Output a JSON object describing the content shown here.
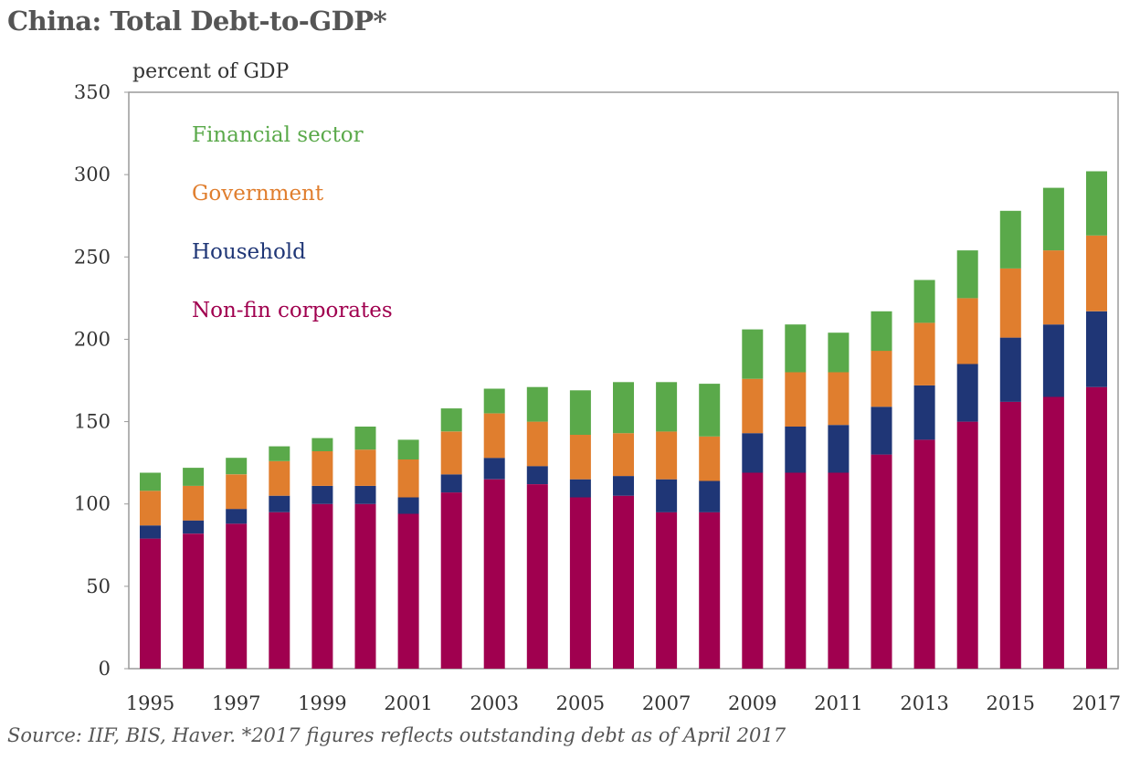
{
  "title": "China: Total Debt-to-GDP*",
  "source": "Source: IIF, BIS, Haver. *2017 figures reflects outstanding debt as of April 2017",
  "chart_data": {
    "type": "bar",
    "stacked": true,
    "ylabel": "percent of GDP",
    "ylim": [
      0,
      350
    ],
    "yticks": [
      0,
      50,
      100,
      150,
      200,
      250,
      300,
      350
    ],
    "grid": false,
    "legend_position": "top-left",
    "categories": [
      "1995",
      "1996",
      "1997",
      "1998",
      "1999",
      "2000",
      "2001",
      "2002",
      "2003",
      "2004",
      "2005",
      "2006",
      "2007",
      "2008",
      "2009",
      "2010",
      "2011",
      "2012",
      "2013",
      "2014",
      "2015",
      "2016",
      "2017"
    ],
    "xtick_labels": [
      "1995",
      "1997",
      "1999",
      "2001",
      "2003",
      "2005",
      "2007",
      "2009",
      "2011",
      "2013",
      "2015",
      "2017"
    ],
    "series": [
      {
        "name": "Non-fin corporates",
        "color": "#a0004f",
        "values": [
          79,
          82,
          88,
          95,
          100,
          100,
          94,
          107,
          115,
          112,
          104,
          105,
          95,
          95,
          119,
          119,
          119,
          130,
          139,
          150,
          162,
          165,
          171
        ]
      },
      {
        "name": "Household",
        "color": "#1f3676",
        "values": [
          8,
          8,
          9,
          10,
          11,
          11,
          10,
          11,
          13,
          11,
          11,
          12,
          20,
          19,
          24,
          28,
          29,
          29,
          33,
          35,
          39,
          44,
          46
        ]
      },
      {
        "name": "Government",
        "color": "#e07e2e",
        "values": [
          21,
          21,
          21,
          21,
          21,
          22,
          23,
          26,
          27,
          27,
          27,
          26,
          29,
          27,
          33,
          33,
          32,
          34,
          38,
          40,
          42,
          45,
          46
        ]
      },
      {
        "name": "Financial sector",
        "color": "#5aa94a",
        "values": [
          11,
          11,
          10,
          9,
          8,
          14,
          12,
          14,
          15,
          21,
          27,
          31,
          30,
          32,
          30,
          29,
          24,
          24,
          26,
          29,
          35,
          38,
          39
        ]
      }
    ]
  }
}
